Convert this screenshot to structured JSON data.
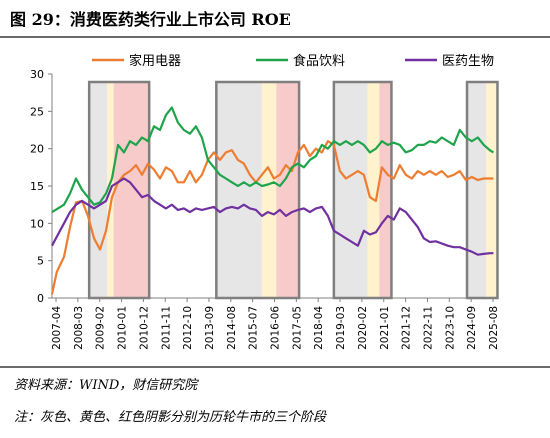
{
  "figure": {
    "title": "图 29：消费医药类行业上市公司 ROE"
  },
  "notes": {
    "source": "资料来源：WIND，财信研究院",
    "caption": "注：灰色、黄色、红色阴影分别为历轮牛市的三个阶段"
  },
  "chart_data": {
    "type": "line",
    "ylim": [
      0,
      30
    ],
    "yticks": [
      0,
      5,
      10,
      15,
      20,
      25,
      30
    ],
    "xlim": [
      2007.25,
      2025.8
    ],
    "xtick_labels": [
      "2007-04",
      "2008-03",
      "2009-02",
      "2010-01",
      "2010-12",
      "2011-11",
      "2012-10",
      "2013-09",
      "2014-08",
      "2015-07",
      "2016-06",
      "2017-05",
      "2018-04",
      "2019-03",
      "2020-02",
      "2021-01",
      "2021-12",
      "2022-11",
      "2023-10",
      "2024-09",
      "2025-08"
    ],
    "legend_position": "top",
    "grid": false,
    "series": [
      {
        "name": "家用电器",
        "color": "#ED7D31",
        "points": [
          [
            2007.25,
            0.5
          ],
          [
            2007.45,
            3.5
          ],
          [
            2007.75,
            5.5
          ],
          [
            2008.0,
            9.5
          ],
          [
            2008.25,
            12.8
          ],
          [
            2008.5,
            13.0
          ],
          [
            2008.75,
            11.0
          ],
          [
            2009.0,
            8.0
          ],
          [
            2009.25,
            6.5
          ],
          [
            2009.5,
            9.0
          ],
          [
            2009.75,
            13.5
          ],
          [
            2010.0,
            15.5
          ],
          [
            2010.25,
            16.5
          ],
          [
            2010.5,
            17.0
          ],
          [
            2010.75,
            17.8
          ],
          [
            2011.0,
            16.5
          ],
          [
            2011.25,
            18.0
          ],
          [
            2011.5,
            17.2
          ],
          [
            2011.75,
            16.0
          ],
          [
            2012.0,
            17.5
          ],
          [
            2012.25,
            17.0
          ],
          [
            2012.5,
            15.5
          ],
          [
            2012.75,
            15.5
          ],
          [
            2013.0,
            17.0
          ],
          [
            2013.25,
            15.5
          ],
          [
            2013.5,
            16.5
          ],
          [
            2013.75,
            18.5
          ],
          [
            2014.0,
            19.5
          ],
          [
            2014.25,
            18.5
          ],
          [
            2014.5,
            19.5
          ],
          [
            2014.75,
            19.8
          ],
          [
            2015.0,
            18.5
          ],
          [
            2015.25,
            18.0
          ],
          [
            2015.5,
            16.5
          ],
          [
            2015.75,
            15.5
          ],
          [
            2016.0,
            16.5
          ],
          [
            2016.25,
            17.5
          ],
          [
            2016.5,
            16.0
          ],
          [
            2016.75,
            16.5
          ],
          [
            2017.0,
            17.8
          ],
          [
            2017.25,
            17.0
          ],
          [
            2017.5,
            19.5
          ],
          [
            2017.75,
            20.5
          ],
          [
            2018.0,
            19.0
          ],
          [
            2018.25,
            20.0
          ],
          [
            2018.5,
            19.5
          ],
          [
            2018.75,
            21.0
          ],
          [
            2019.0,
            20.5
          ],
          [
            2019.25,
            17.0
          ],
          [
            2019.5,
            16.0
          ],
          [
            2019.75,
            16.5
          ],
          [
            2020.0,
            17.0
          ],
          [
            2020.25,
            16.5
          ],
          [
            2020.5,
            13.5
          ],
          [
            2020.75,
            13.0
          ],
          [
            2021.0,
            17.5
          ],
          [
            2021.25,
            16.5
          ],
          [
            2021.5,
            16.0
          ],
          [
            2021.75,
            17.8
          ],
          [
            2022.0,
            16.5
          ],
          [
            2022.25,
            16.0
          ],
          [
            2022.5,
            17.0
          ],
          [
            2022.75,
            16.5
          ],
          [
            2023.0,
            17.0
          ],
          [
            2023.25,
            16.5
          ],
          [
            2023.5,
            17.0
          ],
          [
            2023.75,
            16.2
          ],
          [
            2024.0,
            16.5
          ],
          [
            2024.25,
            17.0
          ],
          [
            2024.5,
            15.8
          ],
          [
            2024.75,
            16.2
          ],
          [
            2025.0,
            15.8
          ],
          [
            2025.25,
            16.0
          ],
          [
            2025.5,
            16.0
          ],
          [
            2025.65,
            16.0
          ]
        ]
      },
      {
        "name": "食品饮料",
        "color": "#1EA44A",
        "points": [
          [
            2007.25,
            11.5
          ],
          [
            2007.5,
            12.0
          ],
          [
            2007.75,
            12.5
          ],
          [
            2008.0,
            14.0
          ],
          [
            2008.25,
            16.0
          ],
          [
            2008.5,
            14.5
          ],
          [
            2008.75,
            13.5
          ],
          [
            2009.0,
            12.5
          ],
          [
            2009.25,
            12.8
          ],
          [
            2009.5,
            14.0
          ],
          [
            2009.75,
            16.0
          ],
          [
            2010.0,
            20.5
          ],
          [
            2010.25,
            19.5
          ],
          [
            2010.5,
            21.0
          ],
          [
            2010.75,
            20.5
          ],
          [
            2011.0,
            21.5
          ],
          [
            2011.25,
            21.0
          ],
          [
            2011.5,
            23.0
          ],
          [
            2011.75,
            22.5
          ],
          [
            2012.0,
            24.5
          ],
          [
            2012.25,
            25.5
          ],
          [
            2012.5,
            23.5
          ],
          [
            2012.75,
            22.5
          ],
          [
            2013.0,
            22.0
          ],
          [
            2013.25,
            23.0
          ],
          [
            2013.5,
            21.5
          ],
          [
            2013.75,
            18.5
          ],
          [
            2014.0,
            17.5
          ],
          [
            2014.25,
            16.5
          ],
          [
            2014.5,
            16.0
          ],
          [
            2014.75,
            15.5
          ],
          [
            2015.0,
            15.0
          ],
          [
            2015.25,
            15.5
          ],
          [
            2015.5,
            15.0
          ],
          [
            2015.75,
            15.5
          ],
          [
            2016.0,
            15.0
          ],
          [
            2016.25,
            15.2
          ],
          [
            2016.5,
            15.5
          ],
          [
            2016.75,
            15.0
          ],
          [
            2017.0,
            16.0
          ],
          [
            2017.25,
            17.5
          ],
          [
            2017.5,
            18.0
          ],
          [
            2017.75,
            17.5
          ],
          [
            2018.0,
            18.5
          ],
          [
            2018.25,
            19.0
          ],
          [
            2018.5,
            20.5
          ],
          [
            2018.75,
            20.0
          ],
          [
            2019.0,
            21.0
          ],
          [
            2019.25,
            20.5
          ],
          [
            2019.5,
            21.0
          ],
          [
            2019.75,
            20.5
          ],
          [
            2020.0,
            21.0
          ],
          [
            2020.25,
            20.5
          ],
          [
            2020.5,
            19.5
          ],
          [
            2020.75,
            20.0
          ],
          [
            2021.0,
            21.0
          ],
          [
            2021.25,
            20.5
          ],
          [
            2021.5,
            20.8
          ],
          [
            2021.75,
            20.5
          ],
          [
            2022.0,
            19.5
          ],
          [
            2022.25,
            19.8
          ],
          [
            2022.5,
            20.5
          ],
          [
            2022.75,
            20.5
          ],
          [
            2023.0,
            21.0
          ],
          [
            2023.25,
            20.8
          ],
          [
            2023.5,
            21.5
          ],
          [
            2023.75,
            21.0
          ],
          [
            2024.0,
            20.5
          ],
          [
            2024.25,
            22.5
          ],
          [
            2024.5,
            21.5
          ],
          [
            2024.75,
            21.0
          ],
          [
            2025.0,
            21.5
          ],
          [
            2025.25,
            20.5
          ],
          [
            2025.5,
            19.8
          ],
          [
            2025.65,
            19.5
          ]
        ]
      },
      {
        "name": "医药生物",
        "color": "#7030A0",
        "points": [
          [
            2007.25,
            7.0
          ],
          [
            2007.5,
            8.5
          ],
          [
            2007.75,
            10.0
          ],
          [
            2008.0,
            11.5
          ],
          [
            2008.25,
            12.5
          ],
          [
            2008.5,
            13.0
          ],
          [
            2008.75,
            12.5
          ],
          [
            2009.0,
            12.0
          ],
          [
            2009.25,
            12.5
          ],
          [
            2009.5,
            13.0
          ],
          [
            2009.75,
            15.0
          ],
          [
            2010.0,
            15.5
          ],
          [
            2010.25,
            16.0
          ],
          [
            2010.5,
            15.5
          ],
          [
            2010.75,
            14.5
          ],
          [
            2011.0,
            13.5
          ],
          [
            2011.25,
            13.8
          ],
          [
            2011.5,
            13.0
          ],
          [
            2011.75,
            12.5
          ],
          [
            2012.0,
            12.0
          ],
          [
            2012.25,
            12.5
          ],
          [
            2012.5,
            11.8
          ],
          [
            2012.75,
            12.0
          ],
          [
            2013.0,
            11.5
          ],
          [
            2013.25,
            12.0
          ],
          [
            2013.5,
            11.8
          ],
          [
            2013.75,
            12.0
          ],
          [
            2014.0,
            12.2
          ],
          [
            2014.25,
            11.5
          ],
          [
            2014.5,
            12.0
          ],
          [
            2014.75,
            12.2
          ],
          [
            2015.0,
            12.0
          ],
          [
            2015.25,
            12.5
          ],
          [
            2015.5,
            12.0
          ],
          [
            2015.75,
            11.8
          ],
          [
            2016.0,
            11.0
          ],
          [
            2016.25,
            11.5
          ],
          [
            2016.5,
            11.2
          ],
          [
            2016.75,
            11.8
          ],
          [
            2017.0,
            11.0
          ],
          [
            2017.25,
            11.5
          ],
          [
            2017.5,
            11.8
          ],
          [
            2017.75,
            12.0
          ],
          [
            2018.0,
            11.5
          ],
          [
            2018.25,
            12.0
          ],
          [
            2018.5,
            12.2
          ],
          [
            2018.75,
            11.0
          ],
          [
            2019.0,
            9.0
          ],
          [
            2019.25,
            8.5
          ],
          [
            2019.5,
            8.0
          ],
          [
            2019.75,
            7.5
          ],
          [
            2020.0,
            7.0
          ],
          [
            2020.25,
            9.0
          ],
          [
            2020.5,
            8.5
          ],
          [
            2020.75,
            8.8
          ],
          [
            2021.0,
            10.0
          ],
          [
            2021.25,
            11.0
          ],
          [
            2021.5,
            10.5
          ],
          [
            2021.75,
            12.0
          ],
          [
            2022.0,
            11.5
          ],
          [
            2022.25,
            10.5
          ],
          [
            2022.5,
            9.5
          ],
          [
            2022.75,
            8.0
          ],
          [
            2023.0,
            7.5
          ],
          [
            2023.25,
            7.6
          ],
          [
            2023.5,
            7.3
          ],
          [
            2023.75,
            7.0
          ],
          [
            2024.0,
            6.8
          ],
          [
            2024.25,
            6.8
          ],
          [
            2024.5,
            6.5
          ],
          [
            2024.75,
            6.2
          ],
          [
            2025.0,
            5.8
          ],
          [
            2025.25,
            5.9
          ],
          [
            2025.5,
            6.0
          ],
          [
            2025.65,
            6.0
          ]
        ]
      }
    ],
    "bull_markets": [
      {
        "start": 2008.8,
        "yellow": 2009.55,
        "red": 2009.82,
        "end": 2011.3
      },
      {
        "start": 2014.1,
        "yellow": 2016.0,
        "red": 2016.6,
        "end": 2017.55
      },
      {
        "start": 2019.0,
        "yellow": 2020.4,
        "red": 2020.9,
        "end": 2021.4
      },
      {
        "start": 2024.55,
        "yellow": 2025.35,
        "red": null,
        "end": 2025.82
      }
    ],
    "shade_colors": {
      "gray": "#E6E6E6",
      "yellow": "#FFF2CC",
      "red": "#F8CBCB",
      "border": "#7F7F7F"
    }
  }
}
